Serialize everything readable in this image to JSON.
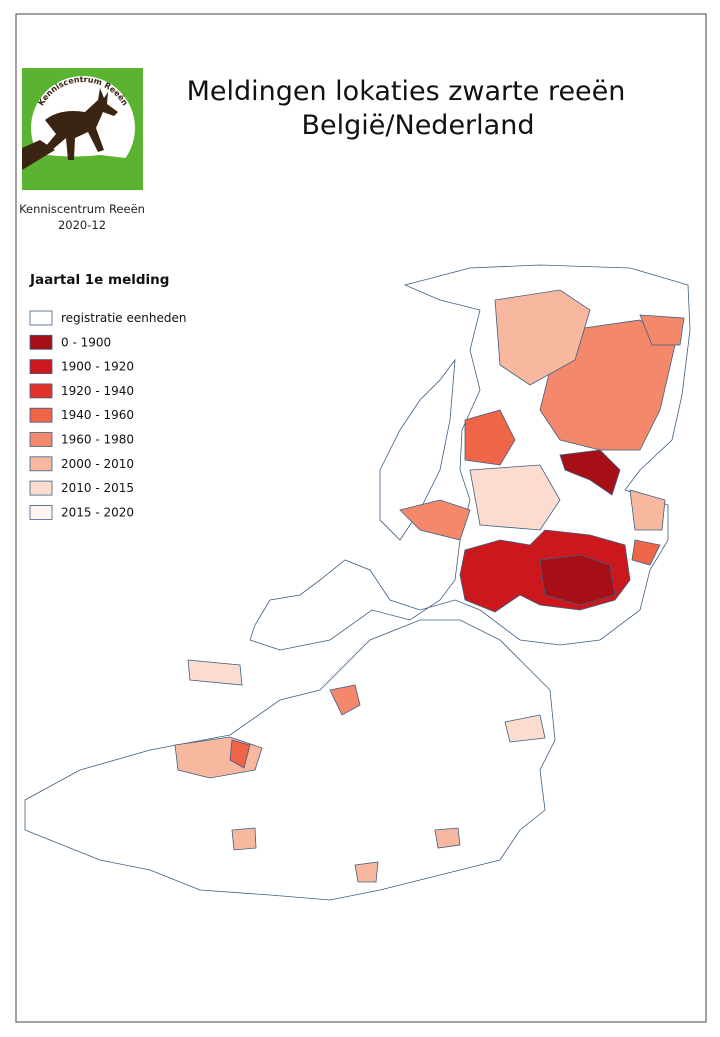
{
  "title": [
    "Meldingen lokaties zwarte reeën",
    "België/Nederland"
  ],
  "logo": {
    "text": "Kenniscentrum Reeën"
  },
  "credit": {
    "organisation": "Kenniscentrum Reeën",
    "date": "2020-12"
  },
  "legend": {
    "title": "Jaartal 1e melding",
    "items": [
      {
        "label": "registratie eenheden",
        "color": "#ffffff"
      },
      {
        "label": "0 - 1900",
        "color": "#a50f15"
      },
      {
        "label": "1900 - 1920",
        "color": "#cb181d"
      },
      {
        "label": "1920 - 1940",
        "color": "#e2332b"
      },
      {
        "label": "1940 - 1960",
        "color": "#ef6548"
      },
      {
        "label": "1960 - 1980",
        "color": "#f4886a"
      },
      {
        "label": "2000 - 2010",
        "color": "#f8b8a0"
      },
      {
        "label": "2010 - 2015",
        "color": "#fcdccf"
      },
      {
        "label": "2015 - 2020",
        "color": "#fff5f0"
      }
    ]
  }
}
